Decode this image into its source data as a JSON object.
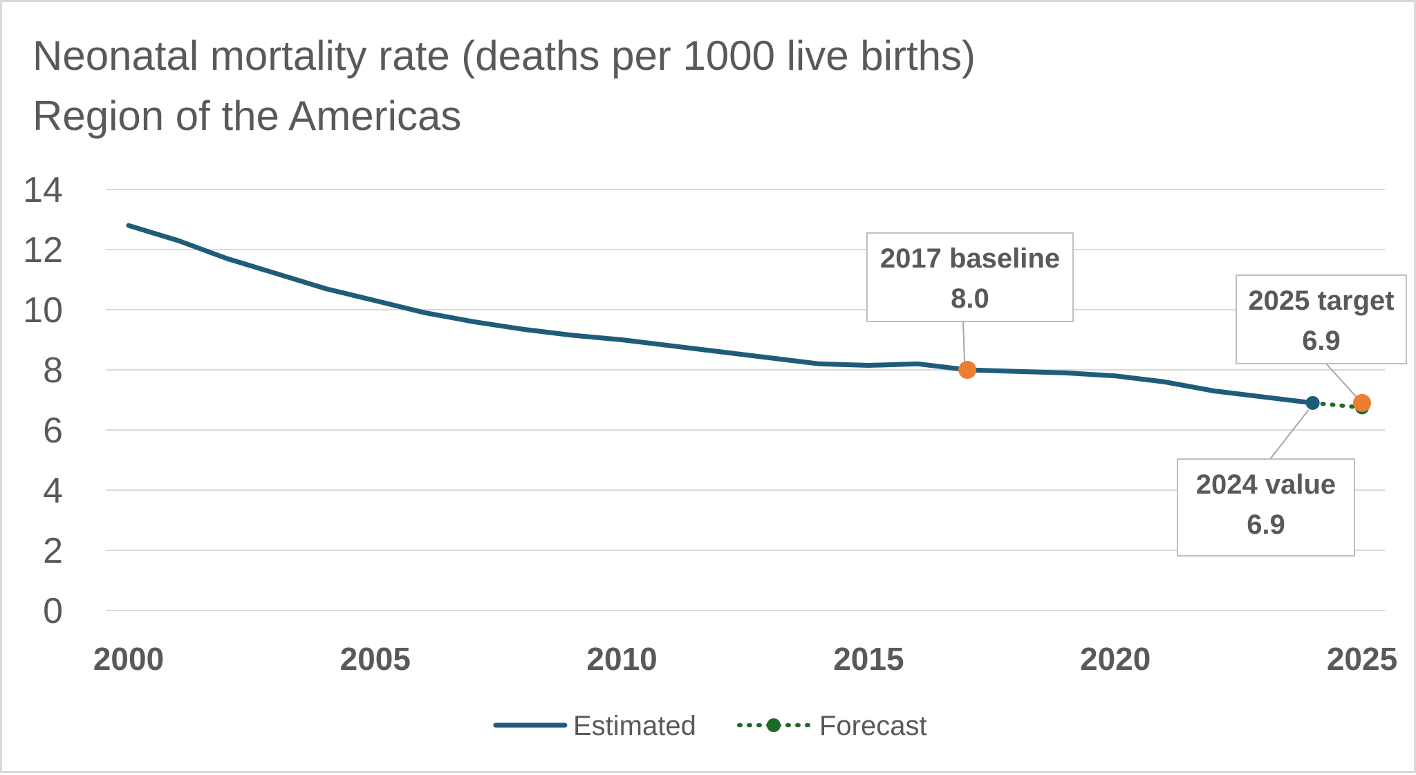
{
  "chart_data": {
    "type": "line",
    "title": "Neonatal mortality rate (deaths per 1000 live births)",
    "subtitle": "Region of the Americas",
    "xlim": [
      2000,
      2025
    ],
    "ylim": [
      0,
      14
    ],
    "x_ticks": [
      "2000",
      "2005",
      "2010",
      "2015",
      "2020",
      "2025"
    ],
    "y_ticks": [
      "0",
      "2",
      "4",
      "6",
      "8",
      "10",
      "12",
      "14"
    ],
    "grid": true,
    "legend_position": "bottom",
    "series": [
      {
        "name": "Estimated",
        "color": "#1f5c7a",
        "x": [
          2000,
          2001,
          2002,
          2003,
          2004,
          2005,
          2006,
          2007,
          2008,
          2009,
          2010,
          2011,
          2012,
          2013,
          2014,
          2015,
          2016,
          2017,
          2018,
          2019,
          2020,
          2021,
          2022,
          2023,
          2024
        ],
        "y": [
          12.8,
          12.3,
          11.7,
          11.2,
          10.7,
          10.3,
          9.9,
          9.6,
          9.35,
          9.15,
          9.0,
          8.8,
          8.6,
          8.4,
          8.2,
          8.15,
          8.2,
          8.0,
          7.95,
          7.9,
          7.8,
          7.6,
          7.3,
          7.1,
          6.9
        ]
      },
      {
        "name": "Forecast",
        "color": "#1e6b27",
        "x": [
          2024,
          2025
        ],
        "y": [
          6.9,
          6.75
        ]
      }
    ],
    "annotations": [
      {
        "label": "2017 baseline",
        "value": "8.0",
        "x": 2017,
        "y": 8.0,
        "marker_color": "#ed7d31"
      },
      {
        "label": "2025 target",
        "value": "6.9",
        "x": 2025,
        "y": 6.9,
        "marker_color": "#ed7d31"
      },
      {
        "label": "2024 value",
        "value": "6.9",
        "x": 2024,
        "y": 6.9,
        "marker_color": "#1f5c7a"
      }
    ]
  }
}
